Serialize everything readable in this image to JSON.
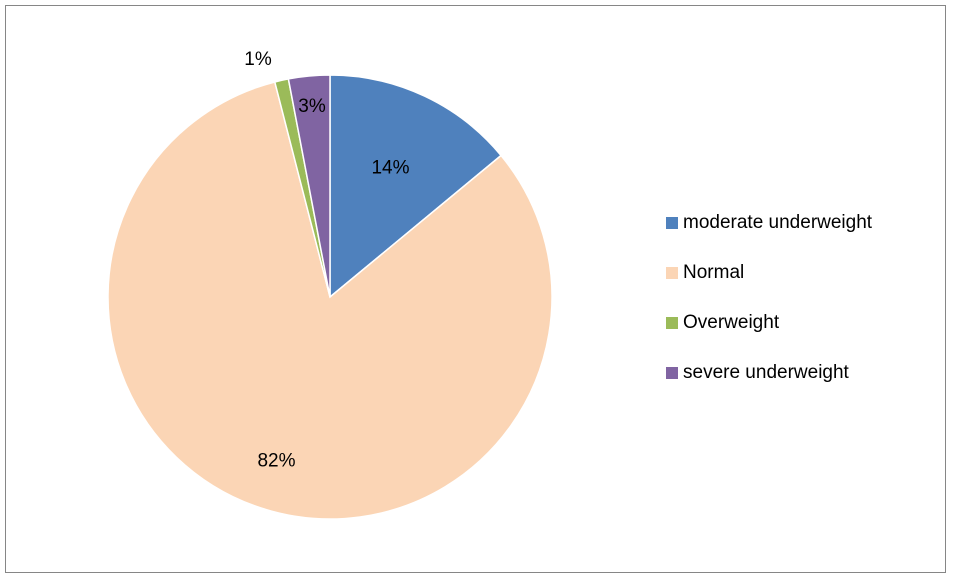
{
  "chart_data": {
    "type": "pie",
    "title": "",
    "categories": [
      "moderate underweight",
      "Normal",
      "Overweight",
      "severe underweight"
    ],
    "values": [
      14,
      82,
      1,
      3
    ],
    "labels": [
      "14%",
      "82%",
      "1%",
      "3%"
    ],
    "colors": [
      "#4f81bd",
      "#fbd5b5",
      "#9bbb59",
      "#8064a2"
    ],
    "legend_position": "right",
    "start_angle": "12 o'clock, clockwise"
  }
}
